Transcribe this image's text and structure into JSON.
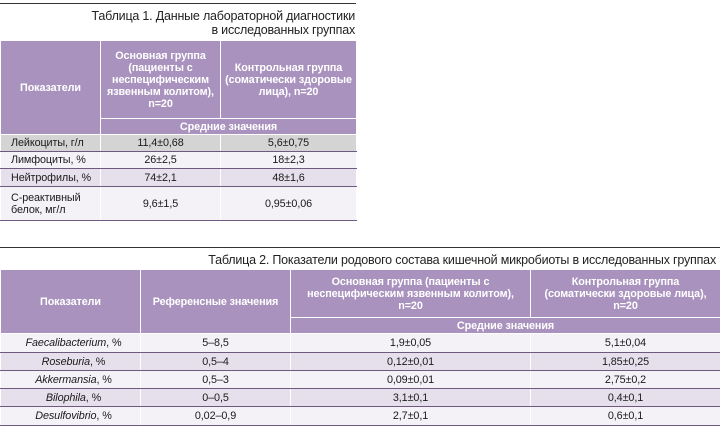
{
  "table1": {
    "caption_line1": "Таблица 1. Данные лабораторной диагностики",
    "caption_line2": "в исследованных группах",
    "header": {
      "indicator": "Показатели",
      "main_group": "Основная группа (пациенты с неспецифическим язвенным колитом), n=20",
      "control_group": "Контрольная группа (соматически здоровые лица), n=20",
      "averages": "Средние значения"
    },
    "rows": [
      {
        "label": "Лейкоциты, г/л",
        "main": "11,4±0,68",
        "control": "5,6±0,75"
      },
      {
        "label": "Лимфоциты, %",
        "main": "26±2,5",
        "control": "18±2,3"
      },
      {
        "label": "Нейтрофилы, %",
        "main": "74±2,1",
        "control": "48±1,6"
      },
      {
        "label": "С-реактивный белок, мг/л",
        "main": "9,6±1,5",
        "control": "0,95±0,06"
      }
    ]
  },
  "table2": {
    "caption": "Таблица 2. Показатели родового состава кишечной микробиоты в исследованных группах",
    "header": {
      "indicator": "Показатели",
      "reference": "Референсные значения",
      "main_group": "Основная группа (пациенты с неспецифическим язвенным колитом), n=20",
      "control_group": "Контрольная группа (соматически здоровые лица), n=20",
      "averages": "Средние значения"
    },
    "rows": [
      {
        "genus": "Faecalibacterium",
        "unit": ", %",
        "reference": "5–8,5",
        "main": "1,9±0,05",
        "control": "5,1±0,04"
      },
      {
        "genus": "Roseburia",
        "unit": ", %",
        "reference": "0,5–4",
        "main": "0,12±0,01",
        "control": "1,85±0,25"
      },
      {
        "genus": "Akkermansia",
        "unit": ", %",
        "reference": "0,5–3",
        "main": "0,09±0,01",
        "control": "2,75±0,2"
      },
      {
        "genus": "Bilophila",
        "unit": ", %",
        "reference": "0–0,5",
        "main": "3,1±0,1",
        "control": "0,4±0,1"
      },
      {
        "genus": "Desulfovibrio",
        "unit": ", %",
        "reference": "0,02–0,9",
        "main": "2,7±0,1",
        "control": "0,6±0,1"
      }
    ]
  },
  "colors": {
    "header_bg": "#a992bd",
    "row_alt": "#e6e0ec",
    "row_plain": "#f4f1f7",
    "row_grey": "#d4d4d4"
  }
}
